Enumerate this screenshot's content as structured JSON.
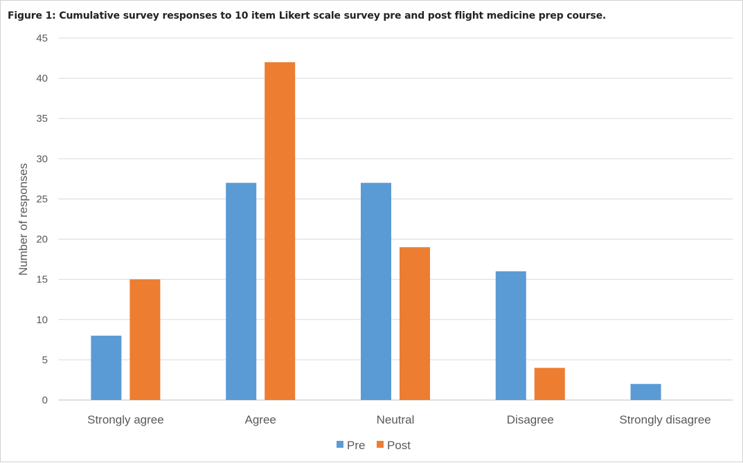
{
  "chart_data": {
    "type": "bar",
    "title": "Figure 1: Cumulative survey responses to 10 item Likert scale survey pre and post flight medicine prep course.",
    "ylabel": "Number of responses",
    "xlabel": "",
    "categories": [
      "Strongly agree",
      "Agree",
      "Neutral",
      "Disagree",
      "Strongly disagree"
    ],
    "series": [
      {
        "name": "Pre",
        "color": "#5B9BD5",
        "values": [
          8,
          27,
          27,
          16,
          2
        ]
      },
      {
        "name": "Post",
        "color": "#ED7D31",
        "values": [
          15,
          42,
          19,
          4,
          0
        ]
      }
    ],
    "ylim": [
      0,
      45
    ],
    "yticks": [
      0,
      5,
      10,
      15,
      20,
      25,
      30,
      35,
      40,
      45
    ],
    "grid": true,
    "legend_position": "bottom"
  }
}
